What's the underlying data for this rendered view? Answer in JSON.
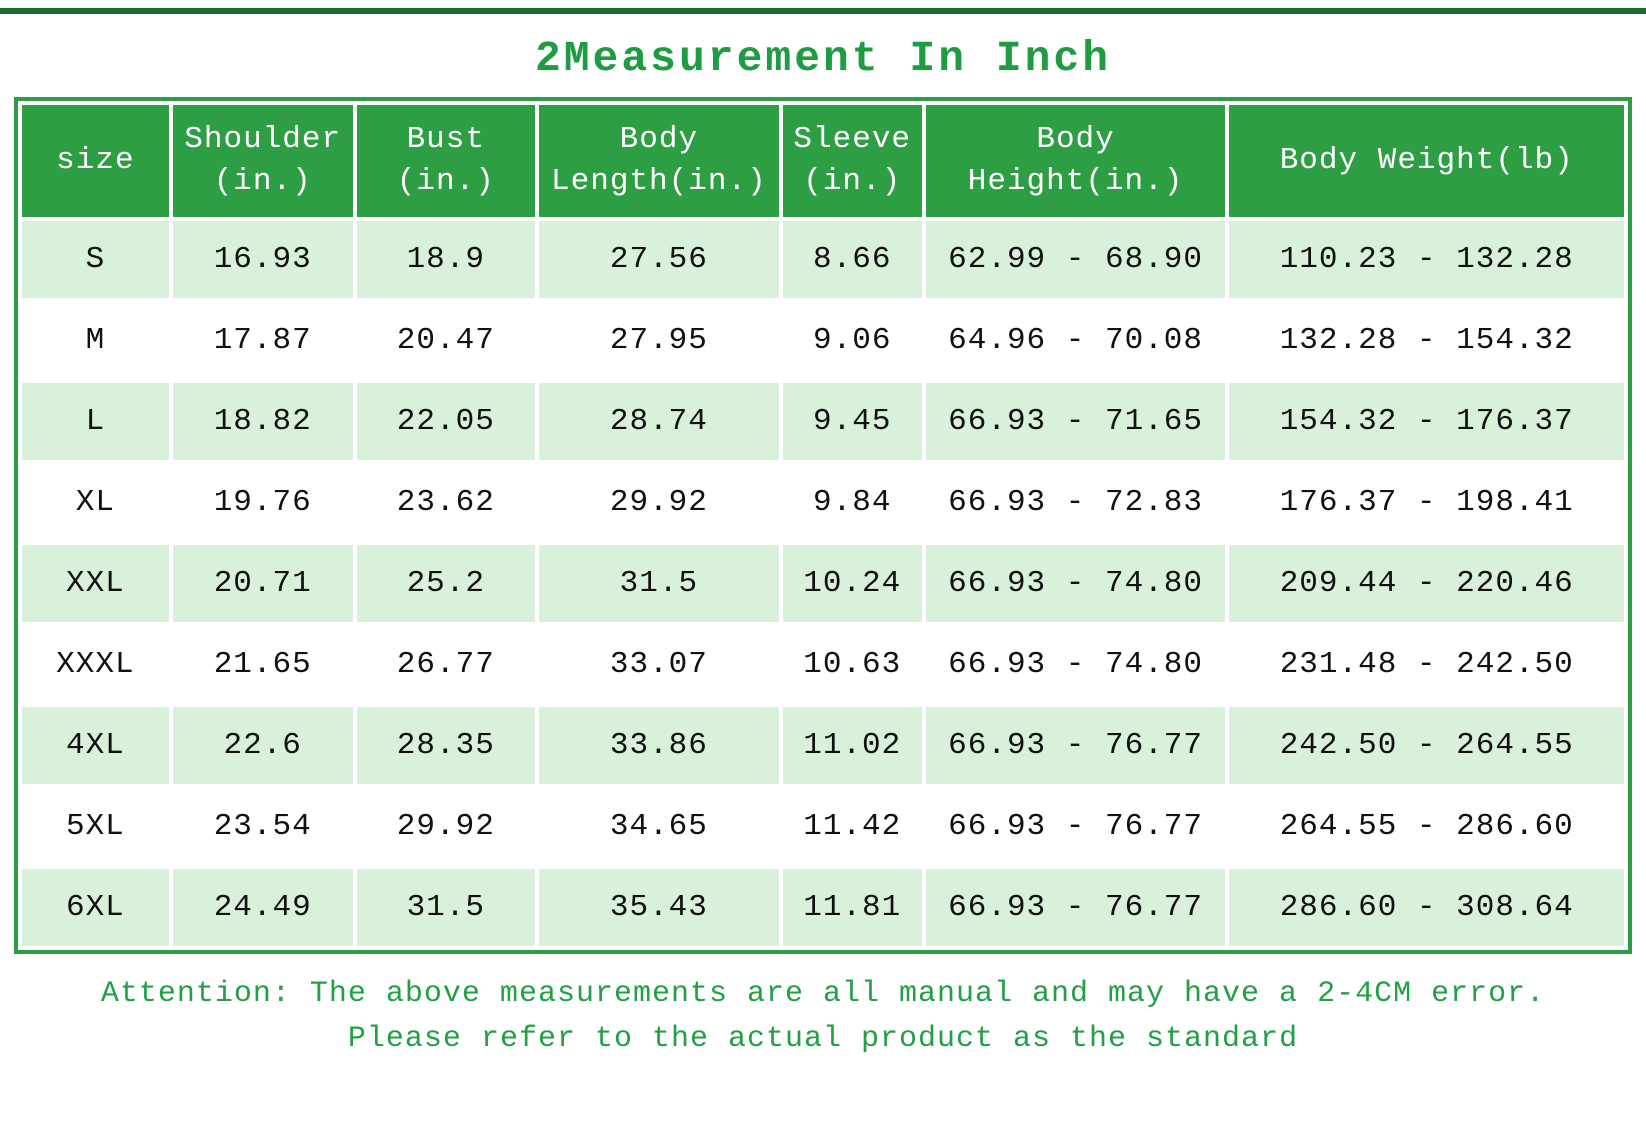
{
  "title": "2Measurement In Inch",
  "colors": {
    "header_green": "#2e9e44",
    "row_stripe_green": "#d9f0da",
    "text_green": "#21a044",
    "border_green": "#2e9e44",
    "top_line_green": "#1e6b2d"
  },
  "chart_data": {
    "type": "table",
    "title": "2Measurement In Inch",
    "columns": [
      "size",
      "Shoulder\n(in.)",
      "Bust\n(in.)",
      "Body\nLength(in.)",
      "Sleeve\n(in.)",
      "Body\nHeight(in.)",
      "Body Weight(lb)"
    ],
    "rows": [
      [
        "S",
        "16.93",
        "18.9",
        "27.56",
        "8.66",
        "62.99 - 68.90",
        "110.23 - 132.28"
      ],
      [
        "M",
        "17.87",
        "20.47",
        "27.95",
        "9.06",
        "64.96 - 70.08",
        "132.28 - 154.32"
      ],
      [
        "L",
        "18.82",
        "22.05",
        "28.74",
        "9.45",
        "66.93 - 71.65",
        "154.32 - 176.37"
      ],
      [
        "XL",
        "19.76",
        "23.62",
        "29.92",
        "9.84",
        "66.93 - 72.83",
        "176.37 - 198.41"
      ],
      [
        "XXL",
        "20.71",
        "25.2",
        "31.5",
        "10.24",
        "66.93 - 74.80",
        "209.44 - 220.46"
      ],
      [
        "XXXL",
        "21.65",
        "26.77",
        "33.07",
        "10.63",
        "66.93 - 74.80",
        "231.48 - 242.50"
      ],
      [
        "4XL",
        "22.6",
        "28.35",
        "33.86",
        "11.02",
        "66.93 - 76.77",
        "242.50 - 264.55"
      ],
      [
        "5XL",
        "23.54",
        "29.92",
        "34.65",
        "11.42",
        "66.93 - 76.77",
        "264.55 - 286.60"
      ],
      [
        "6XL",
        "24.49",
        "31.5",
        "35.43",
        "11.81",
        "66.93 - 76.77",
        "286.60 - 308.64"
      ]
    ]
  },
  "note": {
    "line1": "Attention: The above measurements are all manual and may have a 2-4CM error.",
    "line2": "Please refer to the actual product as the standard"
  }
}
